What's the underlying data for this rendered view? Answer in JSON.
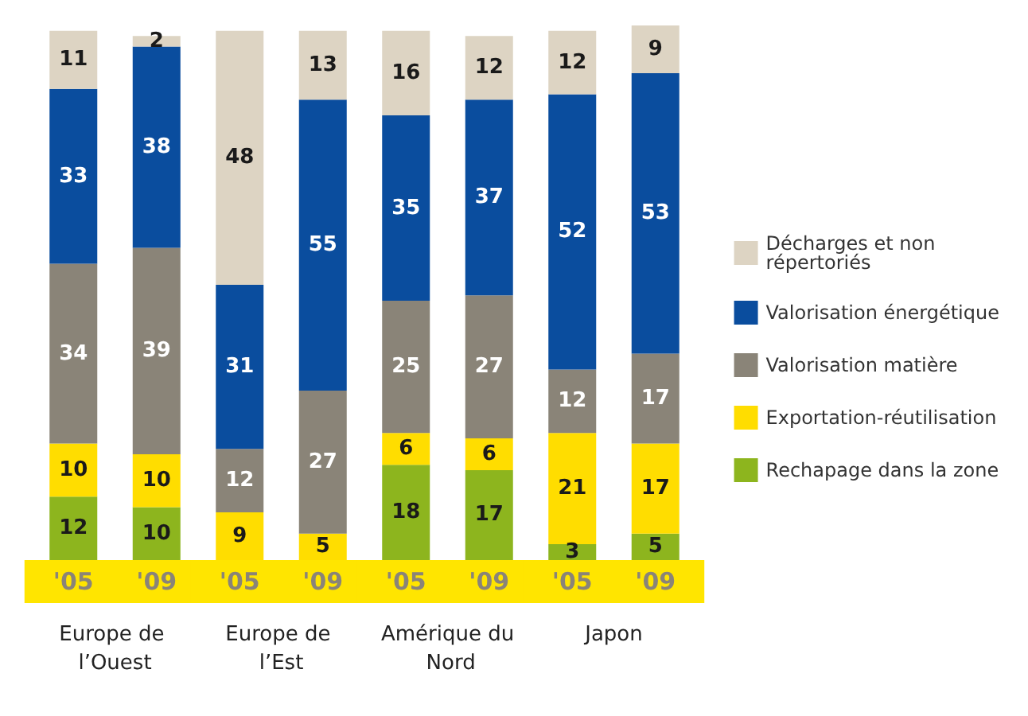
{
  "chart_data": {
    "type": "bar",
    "stacked": true,
    "tick_labels": "x",
    "data_labels": true,
    "legend": "right",
    "categories": [
      "'05",
      "'09",
      "'05",
      "'09",
      "'05",
      "'09",
      "'05",
      "'09"
    ],
    "annotations": [
      "Europe de l’Ouest",
      "Europe de l’Est",
      "Amérique du Nord",
      "Japon"
    ],
    "series": [
      {
        "name": "Rechapage dans la zone",
        "color": "#8db51e",
        "values": [
          12,
          10,
          null,
          null,
          18,
          17,
          3,
          5
        ]
      },
      {
        "name": "Exportation-réutilisation",
        "color": "#ffdd00",
        "values": [
          10,
          10,
          9,
          5,
          6,
          6,
          21,
          17
        ]
      },
      {
        "name": "Valorisation matière",
        "color": "#8a8478",
        "values": [
          34,
          39,
          12,
          27,
          25,
          27,
          12,
          17
        ]
      },
      {
        "name": "Valorisation énergétique",
        "color": "#0a4d9e",
        "values": [
          33,
          38,
          31,
          55,
          35,
          37,
          52,
          53
        ]
      },
      {
        "name": "Décharges et non répertoriés",
        "color": "#ddd4c3",
        "values": [
          11,
          2,
          48,
          13,
          16,
          12,
          12,
          9
        ]
      }
    ]
  }
}
